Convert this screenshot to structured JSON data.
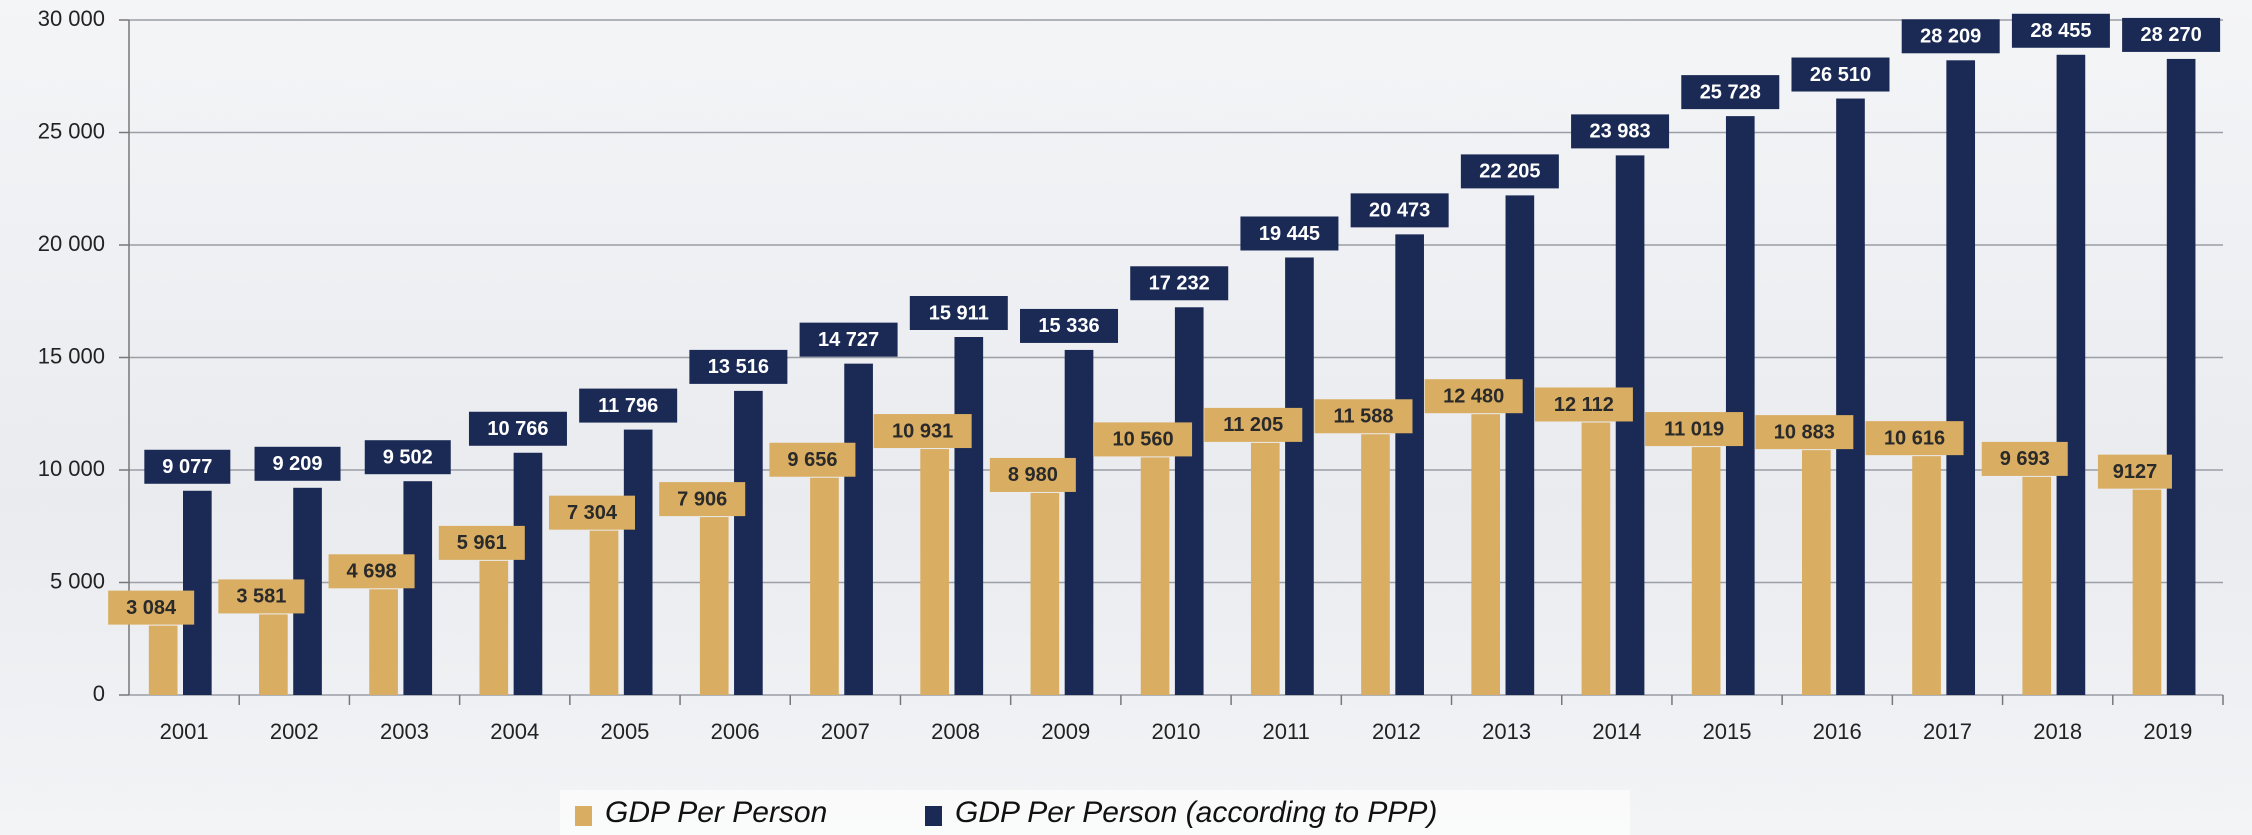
{
  "chart_data": {
    "type": "bar",
    "categories": [
      "2001",
      "2002",
      "2003",
      "2004",
      "2005",
      "2006",
      "2007",
      "2008",
      "2009",
      "2010",
      "2011",
      "2012",
      "2013",
      "2014",
      "2015",
      "2016",
      "2017",
      "2018",
      "2019"
    ],
    "series": [
      {
        "name": "GDP Per Person",
        "color": "#d9ad62",
        "values": [
          3084,
          3581,
          4698,
          5961,
          7304,
          7906,
          9656,
          10931,
          8980,
          10560,
          11205,
          11588,
          12480,
          12112,
          11019,
          10883,
          10616,
          9693,
          9127
        ],
        "value_labels": [
          "3 084",
          "3 581",
          "4 698",
          "5 961",
          "7 304",
          "7 906",
          "9 656",
          "10 931",
          "8 980",
          "10 560",
          "11 205",
          "11 588",
          "12 480",
          "12 112",
          "11 019",
          "10 883",
          "10 616",
          "9 693",
          "9127"
        ]
      },
      {
        "name": "GDP Per Person (according to PPP)",
        "color": "#1b2a55",
        "values": [
          9077,
          9209,
          9502,
          10766,
          11796,
          13516,
          14727,
          15911,
          15336,
          17232,
          19445,
          20473,
          22205,
          23983,
          25728,
          26510,
          28209,
          28455,
          28270
        ],
        "value_labels": [
          "9 077",
          "9 209",
          "9 502",
          "10 766",
          "11 796",
          "13 516",
          "14 727",
          "15 911",
          "15 336",
          "17 232",
          "19 445",
          "20 473",
          "22 205",
          "23 983",
          "25 728",
          "26 510",
          "28 209",
          "28 455",
          "28 270"
        ]
      }
    ],
    "ylim": [
      0,
      30000
    ],
    "yticks": [
      0,
      {
        "value": 5000,
        "label": "5 000"
      },
      {
        "value": 10000,
        "label": "10 000"
      },
      {
        "value": 15000,
        "label": "15 000"
      },
      {
        "value": 20000,
        "label": "20 000"
      },
      {
        "value": 25000,
        "label": "25 000"
      },
      {
        "value": 30000,
        "label": "30 000"
      }
    ],
    "grid": true,
    "legend": "bottom"
  }
}
